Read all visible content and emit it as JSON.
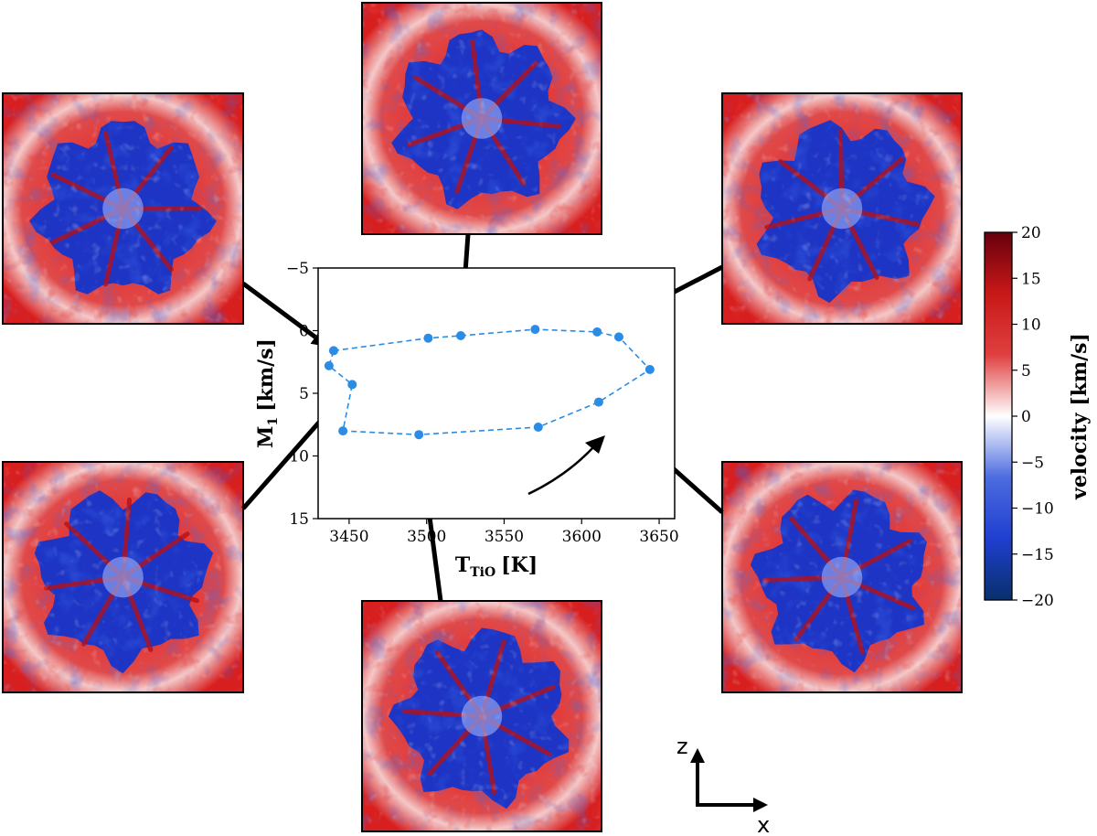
{
  "chart_data": {
    "type": "line",
    "xlabel_main": "T",
    "xlabel_sub": "TiO",
    "xlabel_unit": "[K]",
    "ylabel_main": "M",
    "ylabel_sub": "1",
    "ylabel_unit": "[km/s]",
    "xlim": [
      3430,
      3660
    ],
    "ylim": [
      15,
      -5
    ],
    "y_inverted": true,
    "xticks": [
      "3450",
      "3500",
      "3550",
      "3600",
      "3650"
    ],
    "xtick_values": [
      3450,
      3500,
      3550,
      3600,
      3650
    ],
    "yticks": [
      "−5",
      "0",
      "5",
      "10",
      "15"
    ],
    "ytick_values": [
      -5,
      0,
      5,
      10,
      15
    ],
    "grid": false,
    "series": [
      {
        "style": "dashed with circle markers",
        "color": "#2b8ce6",
        "x": [
          3440,
          3501,
          3522,
          3570,
          3610,
          3624,
          3644,
          3611,
          3572,
          3495,
          3446,
          3452,
          3437,
          3440
        ],
        "y": [
          1.6,
          0.6,
          0.4,
          -0.1,
          0.1,
          0.5,
          3.1,
          5.7,
          7.7,
          8.3,
          8.0,
          4.3,
          2.8,
          1.6
        ]
      }
    ],
    "colorbar": {
      "label": "velocity [km/s]",
      "ticks": [
        "20",
        "15",
        "10",
        "5",
        "0",
        "−5",
        "−10",
        "−15",
        "−20"
      ],
      "tick_values": [
        20,
        15,
        10,
        5,
        0,
        -5,
        -10,
        -15,
        -20
      ],
      "range": [
        -20,
        20
      ],
      "colormap": [
        "#08306b",
        "#1f3fd0",
        "#4c6ce0",
        "#ffffff",
        "#e04040",
        "#c81818",
        "#67000d"
      ]
    },
    "snapshot_panels": 6,
    "annotation_arrow": "curved arrow indicating direction of evolution",
    "axes_indicator": {
      "vertical": "z",
      "horizontal": "x"
    }
  }
}
